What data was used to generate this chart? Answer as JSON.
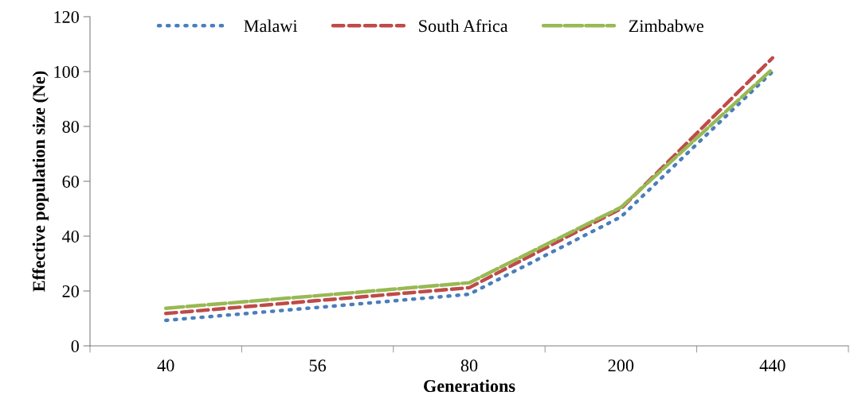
{
  "chart_data": {
    "type": "line",
    "xlabel": "Generations",
    "ylabel": "Effective population size (Ne)",
    "categories": [
      "40",
      "56",
      "80",
      "200",
      "440"
    ],
    "series": [
      {
        "name": "Malawi",
        "color": "#4a7ebb",
        "values": [
          9.3,
          14,
          18.8,
          47,
          100
        ],
        "line_style": "dotted"
      },
      {
        "name": "South Africa",
        "color": "#be4b48",
        "values": [
          11.8,
          16.5,
          21.2,
          50,
          105
        ],
        "line_style": "dashed"
      },
      {
        "name": "Zimbabwe",
        "color": "#98b954",
        "values": [
          13.7,
          18.3,
          23,
          50.5,
          101
        ],
        "line_style": "longdash"
      }
    ],
    "ylim": [
      0,
      120
    ],
    "yticks": [
      0,
      20,
      40,
      60,
      80,
      100,
      120
    ],
    "grid": false,
    "legend": "top",
    "marker": "none"
  }
}
